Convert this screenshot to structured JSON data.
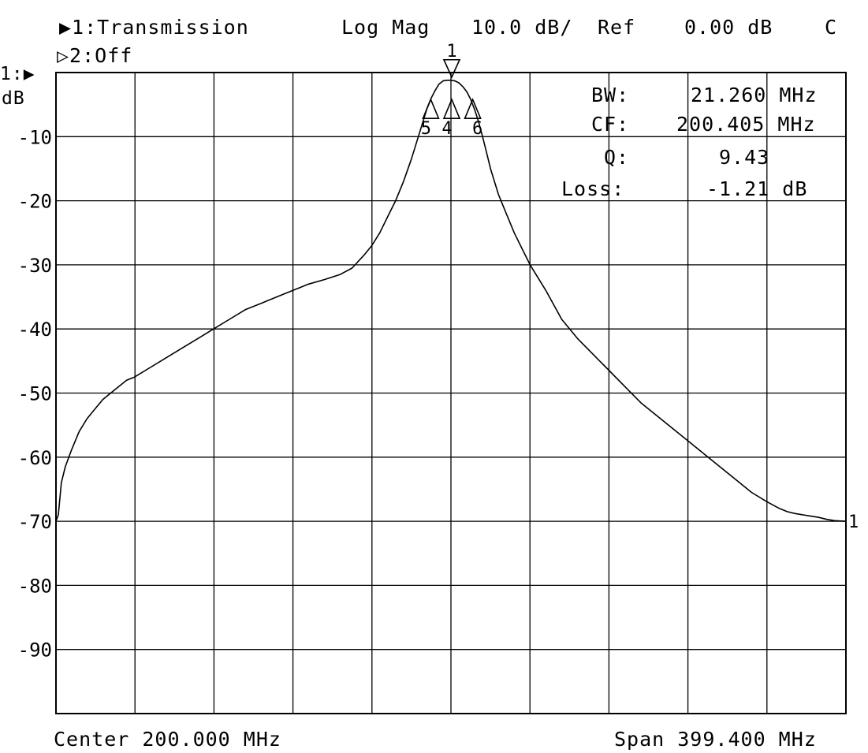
{
  "header": {
    "trace1": "▶1:Transmission",
    "format": "Log Mag",
    "scale": "10.0 dB/",
    "ref": "Ref",
    "ref_value": "0.00 dB",
    "cal": "C",
    "trace2": "▷2:Off"
  },
  "ref_marker": "1:▶",
  "y_unit": "dB",
  "footer": {
    "center": "Center 200.000 MHz",
    "span": "Span 399.400 MHz"
  },
  "readout": {
    "bw_label": "BW:",
    "bw_value": "21.260 MHz",
    "cf_label": "CF:",
    "cf_value": "200.405 MHz",
    "q_label": "Q:",
    "q_value": "9.43",
    "loss_label": "Loss:",
    "loss_value": "-1.21 dB"
  },
  "chart_data": {
    "type": "line",
    "xlim": [
      0.3,
      399.7
    ],
    "ylim": [
      -100,
      0
    ],
    "grid": true,
    "yticks": [
      {
        "value": -10,
        "label": "-10"
      },
      {
        "value": -20,
        "label": "-20"
      },
      {
        "value": -30,
        "label": "-30"
      },
      {
        "value": -40,
        "label": "-40"
      },
      {
        "value": -50,
        "label": "-50"
      },
      {
        "value": -60,
        "label": "-60"
      },
      {
        "value": -70,
        "label": "-70"
      },
      {
        "value": -80,
        "label": "-80"
      },
      {
        "value": -90,
        "label": "-90"
      }
    ],
    "series": [
      {
        "x": [
          0.3,
          1.5,
          3,
          5,
          8,
          12,
          16,
          20,
          24,
          30,
          36,
          40,
          48,
          56,
          64,
          72,
          80,
          88,
          96,
          104,
          112,
          120,
          128,
          136,
          144,
          150,
          156,
          160,
          164,
          168,
          172,
          176,
          180,
          184,
          186,
          188,
          190,
          192,
          194,
          196,
          198,
          200,
          202,
          204,
          206,
          208,
          210,
          212,
          214,
          216,
          218,
          220,
          224,
          228,
          232,
          236,
          240,
          248,
          256,
          264,
          272,
          280,
          288,
          296,
          304,
          312,
          320,
          328,
          336,
          344,
          352,
          360,
          366,
          370,
          374,
          378,
          382,
          386,
          390,
          394,
          399.7
        ],
        "y": [
          -70.0,
          -69.0,
          -64.0,
          -61.5,
          -59.0,
          -56.0,
          -54.0,
          -52.5,
          -51.0,
          -49.5,
          -48.0,
          -47.5,
          -46.0,
          -44.5,
          -43.0,
          -41.5,
          -40.0,
          -38.5,
          -37.0,
          -36.0,
          -35.0,
          -34.0,
          -33.0,
          -32.3,
          -31.5,
          -30.5,
          -28.5,
          -27.0,
          -25.0,
          -22.5,
          -20.0,
          -17.0,
          -13.5,
          -9.5,
          -7.5,
          -5.5,
          -4.0,
          -2.8,
          -1.8,
          -1.3,
          -1.2,
          -1.2,
          -1.3,
          -1.6,
          -2.2,
          -3.0,
          -4.2,
          -5.8,
          -7.7,
          -10.0,
          -12.5,
          -15.0,
          -19.0,
          -22.0,
          -25.0,
          -27.5,
          -30.0,
          -34.0,
          -38.5,
          -41.5,
          -44.0,
          -46.5,
          -49.0,
          -51.5,
          -53.5,
          -55.5,
          -57.5,
          -59.5,
          -61.5,
          -63.5,
          -65.5,
          -67.0,
          -68.0,
          -68.5,
          -68.8,
          -69.0,
          -69.2,
          -69.4,
          -69.7,
          -69.9,
          -70.0
        ]
      }
    ],
    "markers": [
      {
        "label": "1",
        "x": 200.4,
        "y": -1.2,
        "style": "down-triangle"
      },
      {
        "label": "4",
        "x": 200.4,
        "y": -4.2,
        "style": "up-triangle"
      },
      {
        "label": "5",
        "x": 189.8,
        "y": -4.2,
        "style": "up-triangle"
      },
      {
        "label": "6",
        "x": 211.0,
        "y": -4.2,
        "style": "up-triangle"
      }
    ],
    "end_marker_label": "1"
  }
}
